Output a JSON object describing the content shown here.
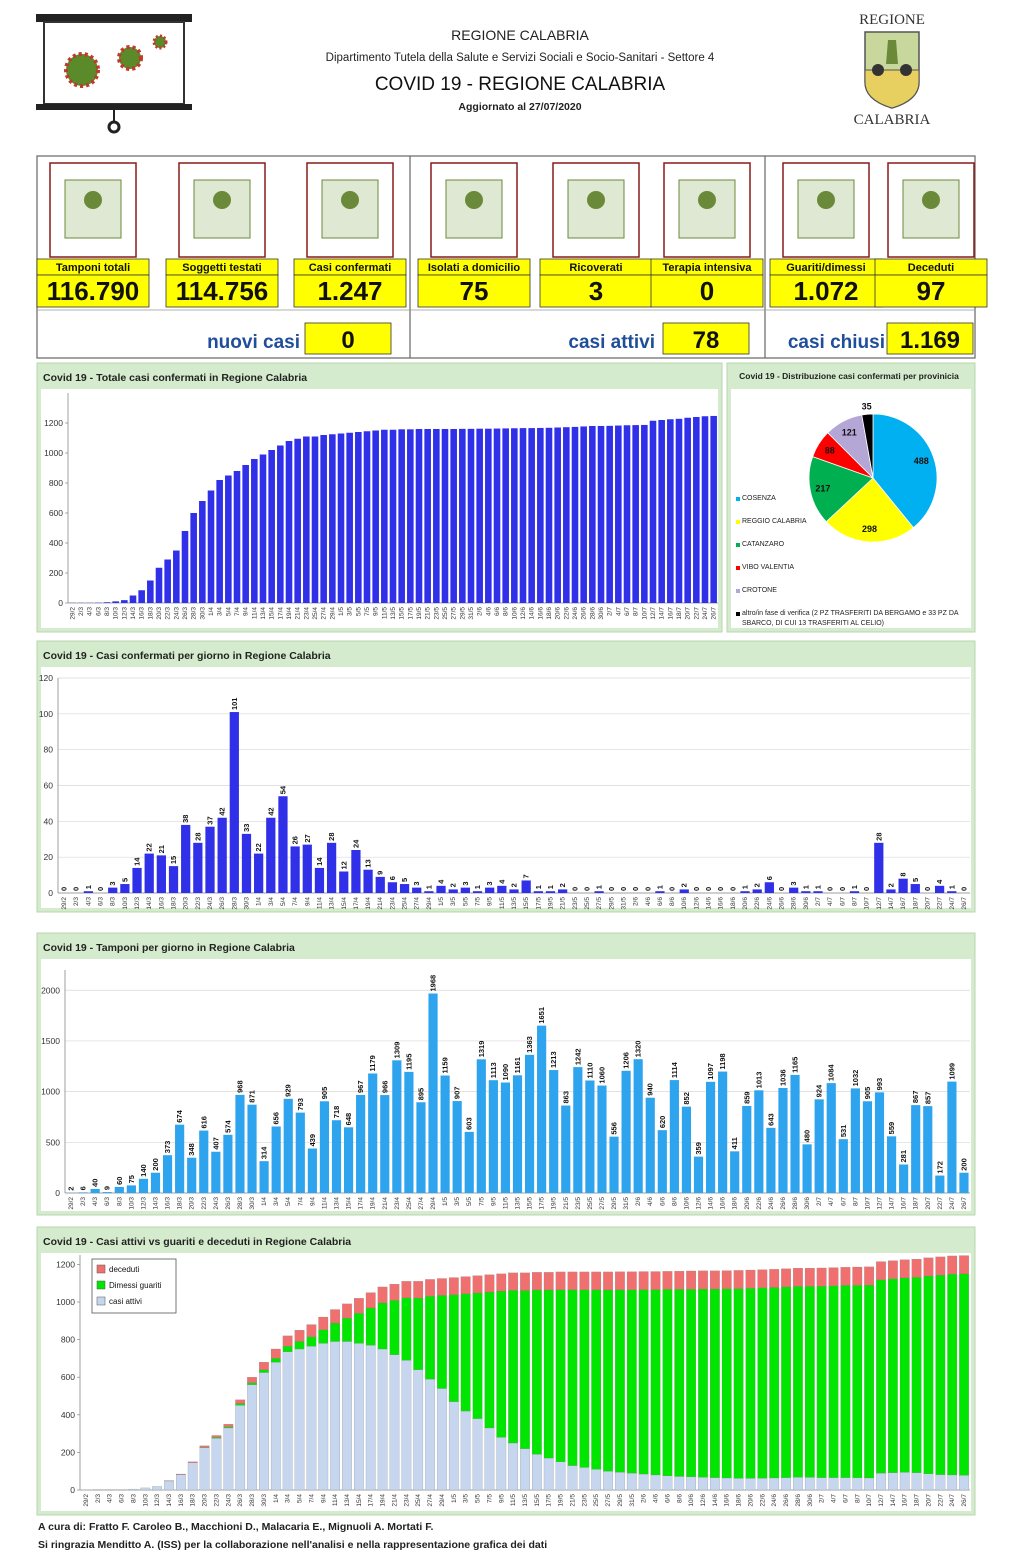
{
  "header": {
    "org": "REGIONE CALABRIA",
    "department": "Dipartimento Tutela della Salute e Servizi Sociali e Socio-Sanitari - Settore 4",
    "title": "COVID 19 - REGIONE CALABRIA",
    "updated": "Aggiornato al  27/07/2020"
  },
  "logo": {
    "top": "REGIONE",
    "bottom": "CALABRIA"
  },
  "kpis": [
    {
      "label": "Tamponi totali",
      "value": "116.790"
    },
    {
      "label": "Soggetti testati",
      "value": "114.756"
    },
    {
      "label": "Casi confermati",
      "value": "1.247"
    },
    {
      "label": "Isolati a domicilio",
      "value": "75"
    },
    {
      "label": "Ricoverati",
      "value": "3"
    },
    {
      "label": "Terapia intensiva",
      "value": "0"
    },
    {
      "label": "Guariti/dimessi",
      "value": "1.072"
    },
    {
      "label": "Deceduti",
      "value": "97"
    }
  ],
  "summary": [
    {
      "label": "nuovi casi",
      "value": "0"
    },
    {
      "label": "casi attivi",
      "value": "78"
    },
    {
      "label": "casi chiusi",
      "value": "1.169"
    }
  ],
  "chart_data": [
    {
      "type": "bar",
      "title": "Covid 19 - Totale casi confermati in Regione Calabria",
      "categories": [
        "29/2",
        "2/3",
        "4/3",
        "6/3",
        "8/3",
        "10/3",
        "12/3",
        "14/3",
        "16/3",
        "18/3",
        "20/3",
        "22/3",
        "24/3",
        "26/3",
        "28/3",
        "30/3",
        "1/4",
        "3/4",
        "5/4",
        "7/4",
        "9/4",
        "11/4",
        "13/4",
        "15/4",
        "17/4",
        "19/4",
        "21/4",
        "23/4",
        "25/4",
        "27/4",
        "29/4",
        "1/5",
        "3/5",
        "5/5",
        "7/5",
        "9/5",
        "11/5",
        "13/5",
        "15/5",
        "17/5",
        "19/5",
        "21/5",
        "23/5",
        "25/5",
        "27/5",
        "29/5",
        "31/5",
        "2/6",
        "4/6",
        "6/6",
        "8/6",
        "10/6",
        "12/6",
        "14/6",
        "16/6",
        "18/6",
        "20/6",
        "22/6",
        "24/6",
        "26/6",
        "28/6",
        "30/6",
        "2/7",
        "4/7",
        "6/7",
        "8/7",
        "10/7",
        "12/7",
        "14/7",
        "16/7",
        "18/7",
        "20/7",
        "22/7",
        "24/7",
        "26/7"
      ],
      "values": [
        1,
        1,
        1,
        2,
        5,
        11,
        19,
        50,
        85,
        150,
        235,
        290,
        350,
        480,
        600,
        680,
        750,
        820,
        850,
        880,
        920,
        960,
        990,
        1020,
        1050,
        1080,
        1095,
        1110,
        1110,
        1120,
        1125,
        1130,
        1135,
        1140,
        1145,
        1150,
        1155,
        1155,
        1158,
        1158,
        1160,
        1160,
        1160,
        1160,
        1160,
        1161,
        1161,
        1162,
        1162,
        1163,
        1164,
        1165,
        1166,
        1166,
        1167,
        1168,
        1170,
        1172,
        1174,
        1177,
        1180,
        1180,
        1181,
        1183,
        1185,
        1186,
        1187,
        1215,
        1220,
        1225,
        1228,
        1235,
        1240,
        1245,
        1247
      ],
      "color": "#3030e8",
      "ylim": [
        0,
        1400
      ],
      "yticks": [
        0,
        200,
        400,
        600,
        800,
        1000,
        1200
      ],
      "grid": false,
      "data_labels": false
    },
    {
      "type": "pie",
      "title": "Covid 19 - Distribuzione casi confermati per provinicia",
      "categories": [
        "COSENZA",
        "REGGIO CALABRIA",
        "CATANZARO",
        "VIBO VALENTIA",
        "CROTONE",
        "altro/in fase di verifica (2 PZ TRASFERITI DA BERGAMO e 33 PZ DA SBARCO, DI CUI 13 TRASFERITI AL CELIO)"
      ],
      "values": [
        488,
        298,
        217,
        88,
        121,
        35
      ],
      "colors": [
        "#00b0f0",
        "#ffff00",
        "#00b050",
        "#ff0000",
        "#b4a7d6",
        "#000000"
      ]
    },
    {
      "type": "bar",
      "title": "Covid 19 - Casi confermati per giorno in Regione Calabria",
      "categories": [
        "29/2",
        "2/3",
        "4/3",
        "6/3",
        "8/3",
        "10/3",
        "12/3",
        "14/3",
        "16/3",
        "18/3",
        "20/3",
        "22/3",
        "24/3",
        "26/3",
        "28/3",
        "30/3",
        "1/4",
        "3/4",
        "5/4",
        "7/4",
        "9/4",
        "11/4",
        "13/4",
        "15/4",
        "17/4",
        "19/4",
        "21/4",
        "23/4",
        "25/4",
        "27/4",
        "29/4",
        "1/5",
        "3/5",
        "5/5",
        "7/5",
        "9/5",
        "11/5",
        "13/5",
        "15/5",
        "17/5",
        "19/5",
        "21/5",
        "23/5",
        "25/5",
        "27/5",
        "29/5",
        "31/5",
        "2/6",
        "4/6",
        "6/6",
        "8/6",
        "10/6",
        "12/6",
        "14/6",
        "16/6",
        "18/6",
        "20/6",
        "22/6",
        "24/6",
        "26/6",
        "28/6",
        "30/6",
        "2/7",
        "4/7",
        "6/7",
        "8/7",
        "10/7",
        "12/7",
        "14/7",
        "16/7",
        "18/7",
        "20/7",
        "22/7",
        "24/7",
        "26/7"
      ],
      "values": [
        0,
        0,
        1,
        0,
        3,
        5,
        14,
        22,
        21,
        15,
        38,
        28,
        37,
        42,
        101,
        33,
        22,
        42,
        54,
        26,
        27,
        14,
        28,
        12,
        24,
        13,
        9,
        6,
        5,
        3,
        1,
        4,
        2,
        3,
        1,
        3,
        4,
        2,
        7,
        1,
        1,
        2,
        0,
        0,
        1,
        0,
        0,
        0,
        0,
        1,
        0,
        2,
        0,
        0,
        0,
        0,
        1,
        2,
        6,
        0,
        3,
        1,
        1,
        0,
        0,
        1,
        0,
        28,
        2,
        8,
        5,
        0,
        4,
        1,
        0
      ],
      "color": "#3030e8",
      "ylim": [
        0,
        120
      ],
      "yticks": [
        0,
        20,
        40,
        60,
        80,
        100,
        120
      ],
      "grid": true,
      "data_labels": true
    },
    {
      "type": "bar",
      "title": "Covid 19 - Tamponi per giorno in Regione Calabria",
      "categories": [
        "29/2",
        "2/3",
        "4/3",
        "6/3",
        "8/3",
        "10/3",
        "12/3",
        "14/3",
        "16/3",
        "18/3",
        "20/3",
        "22/3",
        "24/3",
        "26/3",
        "28/3",
        "30/3",
        "1/4",
        "3/4",
        "5/4",
        "7/4",
        "9/4",
        "11/4",
        "13/4",
        "15/4",
        "17/4",
        "19/4",
        "21/4",
        "23/4",
        "25/4",
        "27/4",
        "29/4",
        "1/5",
        "3/5",
        "5/5",
        "7/5",
        "9/5",
        "11/5",
        "13/5",
        "15/5",
        "17/5",
        "19/5",
        "21/5",
        "23/5",
        "25/5",
        "27/5",
        "29/5",
        "31/5",
        "2/6",
        "4/6",
        "6/6",
        "8/6",
        "10/6",
        "12/6",
        "14/6",
        "16/6",
        "18/6",
        "20/6",
        "22/6",
        "24/6",
        "26/6",
        "28/6",
        "30/6",
        "2/7",
        "4/7",
        "6/7",
        "8/7",
        "10/7",
        "12/7",
        "14/7",
        "16/7",
        "18/7",
        "20/7",
        "22/7",
        "24/7",
        "26/7"
      ],
      "values": [
        2,
        6,
        40,
        9,
        60,
        75,
        140,
        200,
        373,
        674,
        348,
        616,
        407,
        574,
        968,
        871,
        314,
        656,
        929,
        793,
        439,
        905,
        718,
        648,
        967,
        1179,
        966,
        1309,
        1195,
        895,
        1968,
        1159,
        907,
        603,
        1319,
        1113,
        1090,
        1161,
        1363,
        1651,
        1213,
        863,
        1242,
        1110,
        1060,
        556,
        1206,
        1320,
        940,
        620,
        1114,
        852,
        359,
        1097,
        1198,
        411,
        859,
        1013,
        643,
        1036,
        1165,
        480,
        924,
        1084,
        531,
        1032,
        905,
        993,
        559,
        281,
        867,
        857,
        172,
        1099,
        200
      ],
      "color": "#2ea3ee",
      "ylim": [
        0,
        2200
      ],
      "yticks": [
        0,
        500,
        1000,
        1500,
        2000
      ],
      "grid": true,
      "data_labels": true
    },
    {
      "type": "stacked_bar",
      "title": "Covid 19 - Casi attivi vs guariti e deceduti in Regione Calabria",
      "categories": [
        "29/2",
        "2/3",
        "4/3",
        "6/3",
        "8/3",
        "10/3",
        "12/3",
        "14/3",
        "16/3",
        "18/3",
        "20/3",
        "22/3",
        "24/3",
        "26/3",
        "28/3",
        "30/3",
        "1/4",
        "3/4",
        "5/4",
        "7/4",
        "9/4",
        "11/4",
        "13/4",
        "15/4",
        "17/4",
        "19/4",
        "21/4",
        "23/4",
        "25/4",
        "27/4",
        "29/4",
        "1/5",
        "3/5",
        "5/5",
        "7/5",
        "9/5",
        "11/5",
        "13/5",
        "15/5",
        "17/5",
        "19/5",
        "21/5",
        "23/5",
        "25/5",
        "27/5",
        "29/5",
        "31/5",
        "2/6",
        "4/6",
        "6/6",
        "8/6",
        "10/6",
        "12/6",
        "14/6",
        "16/6",
        "18/6",
        "20/6",
        "22/6",
        "24/6",
        "26/6",
        "28/6",
        "30/6",
        "2/7",
        "4/7",
        "6/7",
        "8/7",
        "10/7",
        "12/7",
        "14/7",
        "16/7",
        "18/7",
        "20/7",
        "22/7",
        "24/7",
        "26/7"
      ],
      "series": [
        {
          "name": "casi attivi",
          "color": "#c6d6ee",
          "values": [
            0,
            1,
            1,
            2,
            5,
            11,
            19,
            48,
            82,
            145,
            225,
            275,
            330,
            450,
            560,
            625,
            680,
            735,
            750,
            765,
            780,
            790,
            790,
            780,
            770,
            750,
            720,
            690,
            640,
            590,
            540,
            470,
            420,
            380,
            330,
            280,
            250,
            220,
            190,
            170,
            150,
            130,
            120,
            110,
            100,
            95,
            90,
            85,
            80,
            75,
            72,
            70,
            68,
            66,
            64,
            62,
            62,
            63,
            64,
            66,
            68,
            67,
            66,
            66,
            66,
            65,
            64,
            90,
            92,
            94,
            92,
            86,
            82,
            80,
            78
          ]
        },
        {
          "name": "Dimessi guariti",
          "color": "#00e600",
          "values": [
            0,
            0,
            0,
            0,
            0,
            0,
            0,
            0,
            0,
            0,
            2,
            5,
            6,
            10,
            10,
            15,
            20,
            30,
            40,
            50,
            72,
            98,
            124,
            160,
            198,
            245,
            289,
            332,
            381,
            440,
            495,
            569,
            624,
            668,
            723,
            778,
            812,
            841,
            874,
            894,
            915,
            935,
            945,
            955,
            964,
            970,
            975,
            981,
            986,
            992,
            995,
            998,
            1001,
            1003,
            1006,
            1009,
            1011,
            1012,
            1013,
            1014,
            1015,
            1016,
            1018,
            1020,
            1022,
            1024,
            1026,
            1028,
            1031,
            1034,
            1039,
            1052,
            1061,
            1068,
            1072
          ]
        },
        {
          "name": "deceduti",
          "color": "#f07070",
          "values": [
            0,
            0,
            0,
            0,
            0,
            0,
            0,
            2,
            3,
            5,
            8,
            10,
            14,
            20,
            30,
            40,
            50,
            55,
            60,
            65,
            68,
            72,
            76,
            80,
            82,
            85,
            86,
            88,
            89,
            90,
            90,
            91,
            91,
            92,
            92,
            92,
            93,
            94,
            94,
            94,
            95,
            95,
            95,
            95,
            96,
            96,
            96,
            96,
            96,
            96,
            97,
            97,
            97,
            97,
            97,
            97,
            97,
            97,
            97,
            97,
            97,
            97,
            97,
            97,
            97,
            97,
            97,
            97,
            97,
            97,
            97,
            97,
            97,
            97,
            97
          ]
        }
      ],
      "ylim": [
        0,
        1250
      ],
      "yticks": [
        0,
        200,
        400,
        600,
        800,
        1000,
        1200
      ],
      "grid": false,
      "legend": "upper left"
    }
  ],
  "footer": {
    "credits": "A cura di: Fratto F. Caroleo B., Macchioni D., Malacaria E., Mignuoli A. Mortati F.",
    "thanks": "Si ringrazia Menditto A. (ISS) per la collaborazione nell'analisi e nella rappresentazione grafica dei dati"
  }
}
